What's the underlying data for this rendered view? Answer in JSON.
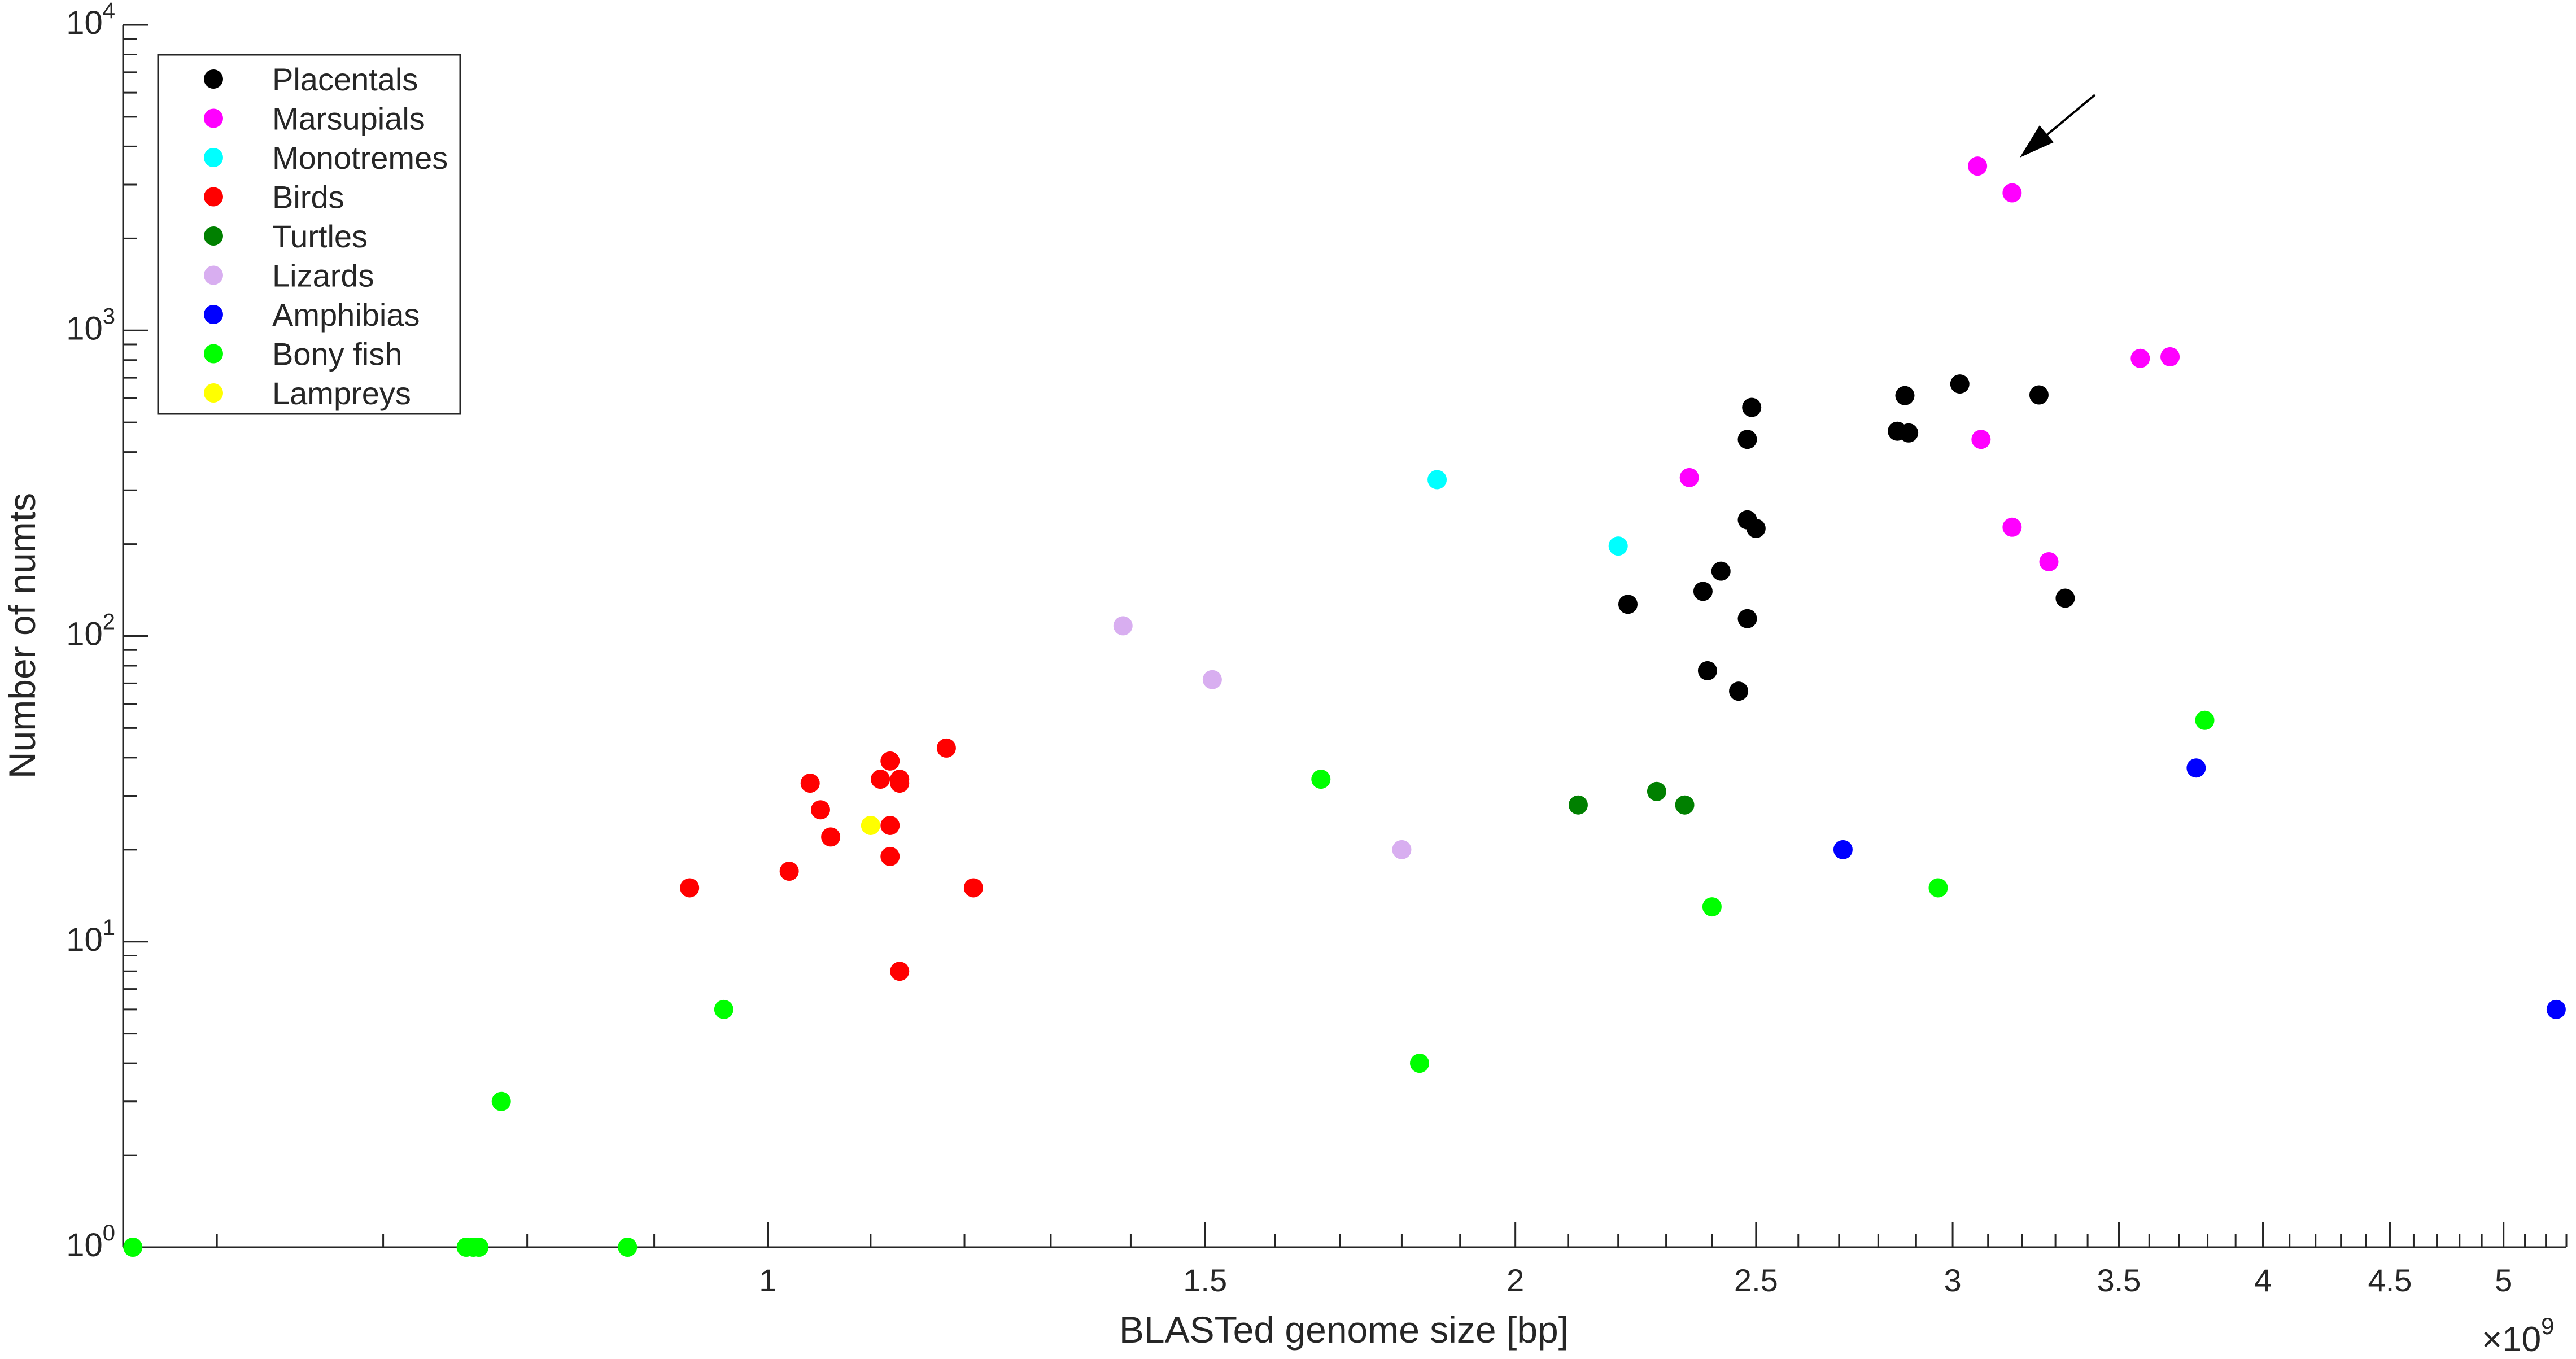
{
  "chart_data": {
    "type": "scatter",
    "xlabel": "BLASTed genome size [bp]",
    "ylabel": "Number of numts",
    "x_scale": "log",
    "y_scale": "log",
    "x_exponent_label": "×10",
    "x_exponent_power": "9",
    "xlim": [
      0.55,
      5.3
    ],
    "ylim": [
      1,
      10000
    ],
    "x_ticks": [
      {
        "value": 1,
        "label": "1"
      },
      {
        "value": 1.5,
        "label": "1.5"
      },
      {
        "value": 2,
        "label": "2"
      },
      {
        "value": 2.5,
        "label": "2.5"
      },
      {
        "value": 3,
        "label": "3"
      },
      {
        "value": 3.5,
        "label": "3.5"
      },
      {
        "value": 4,
        "label": "4"
      },
      {
        "value": 4.5,
        "label": "4.5"
      },
      {
        "value": 5,
        "label": "5"
      }
    ],
    "y_ticks": [
      {
        "value": 1,
        "base": "10",
        "exp": "0"
      },
      {
        "value": 10,
        "base": "10",
        "exp": "1"
      },
      {
        "value": 100,
        "base": "10",
        "exp": "2"
      },
      {
        "value": 1000,
        "base": "10",
        "exp": "3"
      },
      {
        "value": 10000,
        "base": "10",
        "exp": "4"
      }
    ],
    "legend_position": "top-left",
    "grid": false,
    "annotation": "arrow pointing to the Marsupials outliers",
    "series": [
      {
        "name": "Placentals",
        "color": "#000000",
        "points": [
          [
            2.22,
            127
          ],
          [
            2.38,
            140
          ],
          [
            2.42,
            163
          ],
          [
            2.46,
            66
          ],
          [
            2.39,
            77
          ],
          [
            2.48,
            114
          ],
          [
            2.48,
            440
          ],
          [
            2.49,
            560
          ],
          [
            2.48,
            240
          ],
          [
            2.5,
            225
          ],
          [
            2.85,
            468
          ],
          [
            2.88,
            462
          ],
          [
            2.87,
            612
          ],
          [
            3.02,
            668
          ],
          [
            3.25,
            615
          ],
          [
            3.33,
            133
          ]
        ]
      },
      {
        "name": "Marsupials",
        "color": "#ff00ff",
        "points": [
          [
            2.35,
            330
          ],
          [
            3.07,
            3450
          ],
          [
            3.17,
            2820
          ],
          [
            3.08,
            440
          ],
          [
            3.17,
            227
          ],
          [
            3.28,
            175
          ],
          [
            3.57,
            810
          ],
          [
            3.67,
            820
          ]
        ]
      },
      {
        "name": "Monotremes",
        "color": "#00ffff",
        "points": [
          [
            1.86,
            325
          ],
          [
            2.2,
            197
          ]
        ]
      },
      {
        "name": "Birds",
        "color": "#ff0000",
        "points": [
          [
            0.93,
            15
          ],
          [
            1.02,
            17
          ],
          [
            1.04,
            33
          ],
          [
            1.05,
            27
          ],
          [
            1.06,
            22
          ],
          [
            1.11,
            34
          ],
          [
            1.12,
            24
          ],
          [
            1.12,
            19
          ],
          [
            1.12,
            39
          ],
          [
            1.13,
            34
          ],
          [
            1.13,
            33
          ],
          [
            1.13,
            8
          ],
          [
            1.18,
            43
          ],
          [
            1.21,
            15
          ]
        ]
      },
      {
        "name": "Turtles",
        "color": "#008000",
        "points": [
          [
            2.12,
            28
          ],
          [
            2.28,
            31
          ],
          [
            2.34,
            28
          ]
        ]
      },
      {
        "name": "Lizards",
        "color": "#d8aef0",
        "points": [
          [
            1.39,
            108
          ],
          [
            1.51,
            72
          ],
          [
            1.8,
            20
          ]
        ]
      },
      {
        "name": "Amphibias",
        "color": "#0000ff",
        "points": [
          [
            2.71,
            20
          ],
          [
            3.76,
            37
          ],
          [
            5.25,
            6
          ]
        ]
      },
      {
        "name": "Bony fish",
        "color": "#00ff00",
        "points": [
          [
            0.555,
            1
          ],
          [
            0.756,
            1
          ],
          [
            0.761,
            1
          ],
          [
            0.765,
            1
          ],
          [
            0.878,
            1
          ],
          [
            0.781,
            3
          ],
          [
            0.96,
            6
          ],
          [
            1.67,
            34
          ],
          [
            1.83,
            4
          ],
          [
            2.4,
            13
          ],
          [
            2.96,
            15
          ],
          [
            3.79,
            53
          ]
        ]
      },
      {
        "name": "Lampreys",
        "color": "#ffff00",
        "points": [
          [
            1.1,
            24
          ]
        ]
      }
    ]
  }
}
